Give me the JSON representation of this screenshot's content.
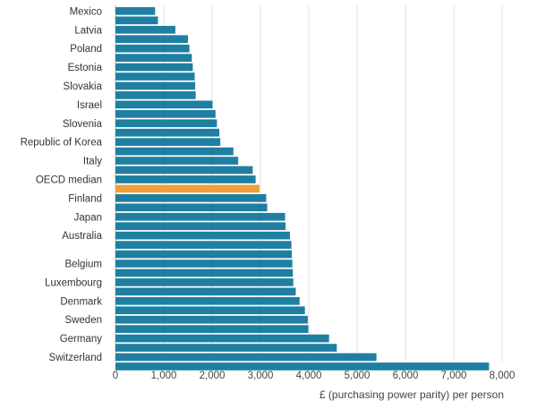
{
  "chart_data": {
    "type": "bar",
    "orientation": "horizontal",
    "xlabel": "£ (purchasing power parity) per person",
    "xlim": [
      0,
      8000
    ],
    "xticks": [
      0,
      1000,
      2000,
      3000,
      4000,
      5000,
      6000,
      7000,
      8000
    ],
    "xtick_labels": [
      "0",
      "1,000",
      "2,000",
      "3,000",
      "4,000",
      "5,000",
      "6,000",
      "7,000",
      "8,000"
    ],
    "grid": true,
    "bar_color": "#1f7fa3",
    "highlight_color": "#f0a03a",
    "bars": [
      {
        "label": "Mexico",
        "value": 820
      },
      {
        "label": "",
        "value": 880
      },
      {
        "label": "Latvia",
        "value": 1240
      },
      {
        "label": "",
        "value": 1500
      },
      {
        "label": "Poland",
        "value": 1530
      },
      {
        "label": "",
        "value": 1580
      },
      {
        "label": "Estonia",
        "value": 1600
      },
      {
        "label": "",
        "value": 1640
      },
      {
        "label": "Slovakia",
        "value": 1650
      },
      {
        "label": "",
        "value": 1660
      },
      {
        "label": "Israel",
        "value": 2010
      },
      {
        "label": "",
        "value": 2070
      },
      {
        "label": "Slovenia",
        "value": 2100
      },
      {
        "label": "",
        "value": 2150
      },
      {
        "label": "Republic of Korea",
        "value": 2170
      },
      {
        "label": "",
        "value": 2440
      },
      {
        "label": "Italy",
        "value": 2540
      },
      {
        "label": "",
        "value": 2840
      },
      {
        "label": "OECD median",
        "value": 2900
      },
      {
        "label": "",
        "value": 2980,
        "highlight": true
      },
      {
        "label": "Finland",
        "value": 3120
      },
      {
        "label": "",
        "value": 3140
      },
      {
        "label": "Japan",
        "value": 3510
      },
      {
        "label": "",
        "value": 3520
      },
      {
        "label": "Australia",
        "value": 3610
      },
      {
        "label": "",
        "value": 3640
      },
      {
        "label": "",
        "value": 3650
      },
      {
        "label": "Belgium",
        "value": 3660
      },
      {
        "label": "",
        "value": 3670
      },
      {
        "label": "Luxembourg",
        "value": 3680
      },
      {
        "label": "",
        "value": 3730
      },
      {
        "label": "Denmark",
        "value": 3810
      },
      {
        "label": "",
        "value": 3920
      },
      {
        "label": "Sweden",
        "value": 3980
      },
      {
        "label": "",
        "value": 3990
      },
      {
        "label": "Germany",
        "value": 4420
      },
      {
        "label": "",
        "value": 4580
      },
      {
        "label": "Switzerland",
        "value": 5400
      },
      {
        "label": "",
        "value": 7730
      }
    ]
  }
}
